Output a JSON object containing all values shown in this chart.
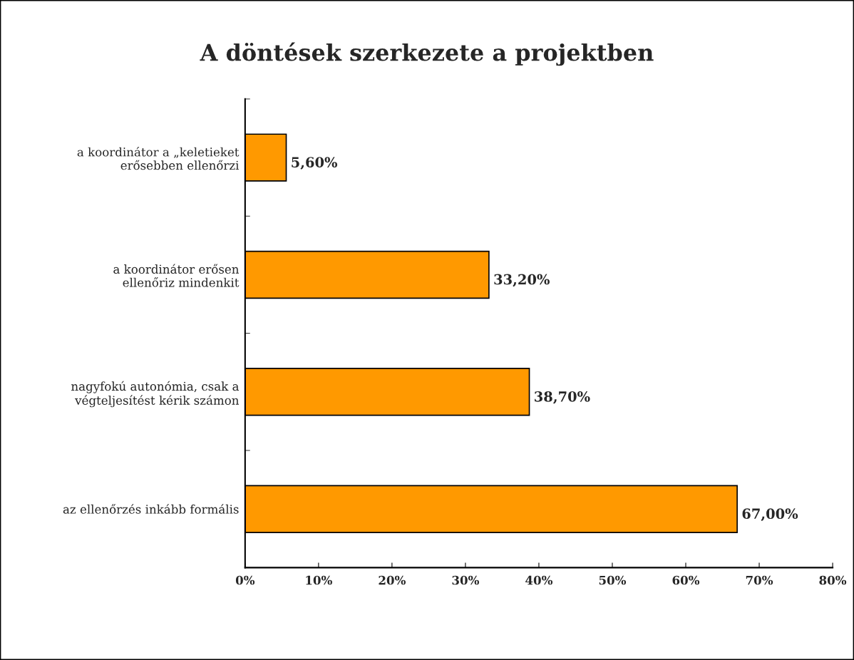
{
  "chart_data": {
    "type": "bar",
    "orientation": "horizontal",
    "title": "A döntések szerkezete a projektben",
    "categories": [
      "a koordinátor a „keletieket\nerősebben ellenőrzi",
      "a koordinátor erősen\nellenőriz mindenkit",
      "nagyfokú autonómia, csak a\nvégteljesítést kérik számon",
      "az ellenőrzés inkább formális"
    ],
    "values": [
      5.6,
      33.2,
      38.7,
      67.0
    ],
    "value_labels": [
      "5,60%",
      "33,20%",
      "38,70%",
      "67,00%"
    ],
    "color": "#ff9900",
    "xlim": [
      0,
      80
    ],
    "xticks": [
      {
        "value": 0,
        "label": "0%"
      },
      {
        "value": 10,
        "label": "10%"
      },
      {
        "value": 20,
        "label": "20%"
      },
      {
        "value": 30,
        "label": "30%"
      },
      {
        "value": 40,
        "label": "40%"
      },
      {
        "value": 50,
        "label": "50%"
      },
      {
        "value": 60,
        "label": "60%"
      },
      {
        "value": 70,
        "label": "70%"
      },
      {
        "value": 80,
        "label": "80%"
      }
    ],
    "grid": false,
    "legend": false
  }
}
